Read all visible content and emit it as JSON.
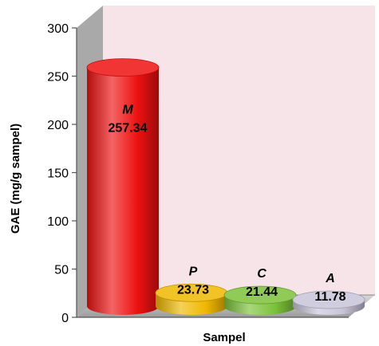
{
  "chart_data": {
    "type": "bar",
    "style": "3d-cylinder",
    "categories": [
      "M",
      "P",
      "C",
      "A"
    ],
    "values": [
      257.34,
      23.73,
      21.44,
      11.78
    ],
    "value_labels": [
      "257.34",
      "23.73",
      "21.44",
      "11.78"
    ],
    "xlabel": "Sampel",
    "ylabel": "GAE  (mg/g sampel)",
    "ylim": [
      0,
      300
    ],
    "yticks": [
      0,
      50,
      100,
      150,
      200,
      250,
      300
    ],
    "grid": false,
    "legend": "none",
    "colors": {
      "bars": [
        "#ee1111",
        "#f0b800",
        "#7cc23a",
        "#c8c4d8"
      ],
      "bar_labels": [
        "#000000",
        "#000000",
        "#000000",
        "#000000"
      ],
      "wall": "#f7e4e8",
      "floor": "#c8c8c8"
    }
  }
}
